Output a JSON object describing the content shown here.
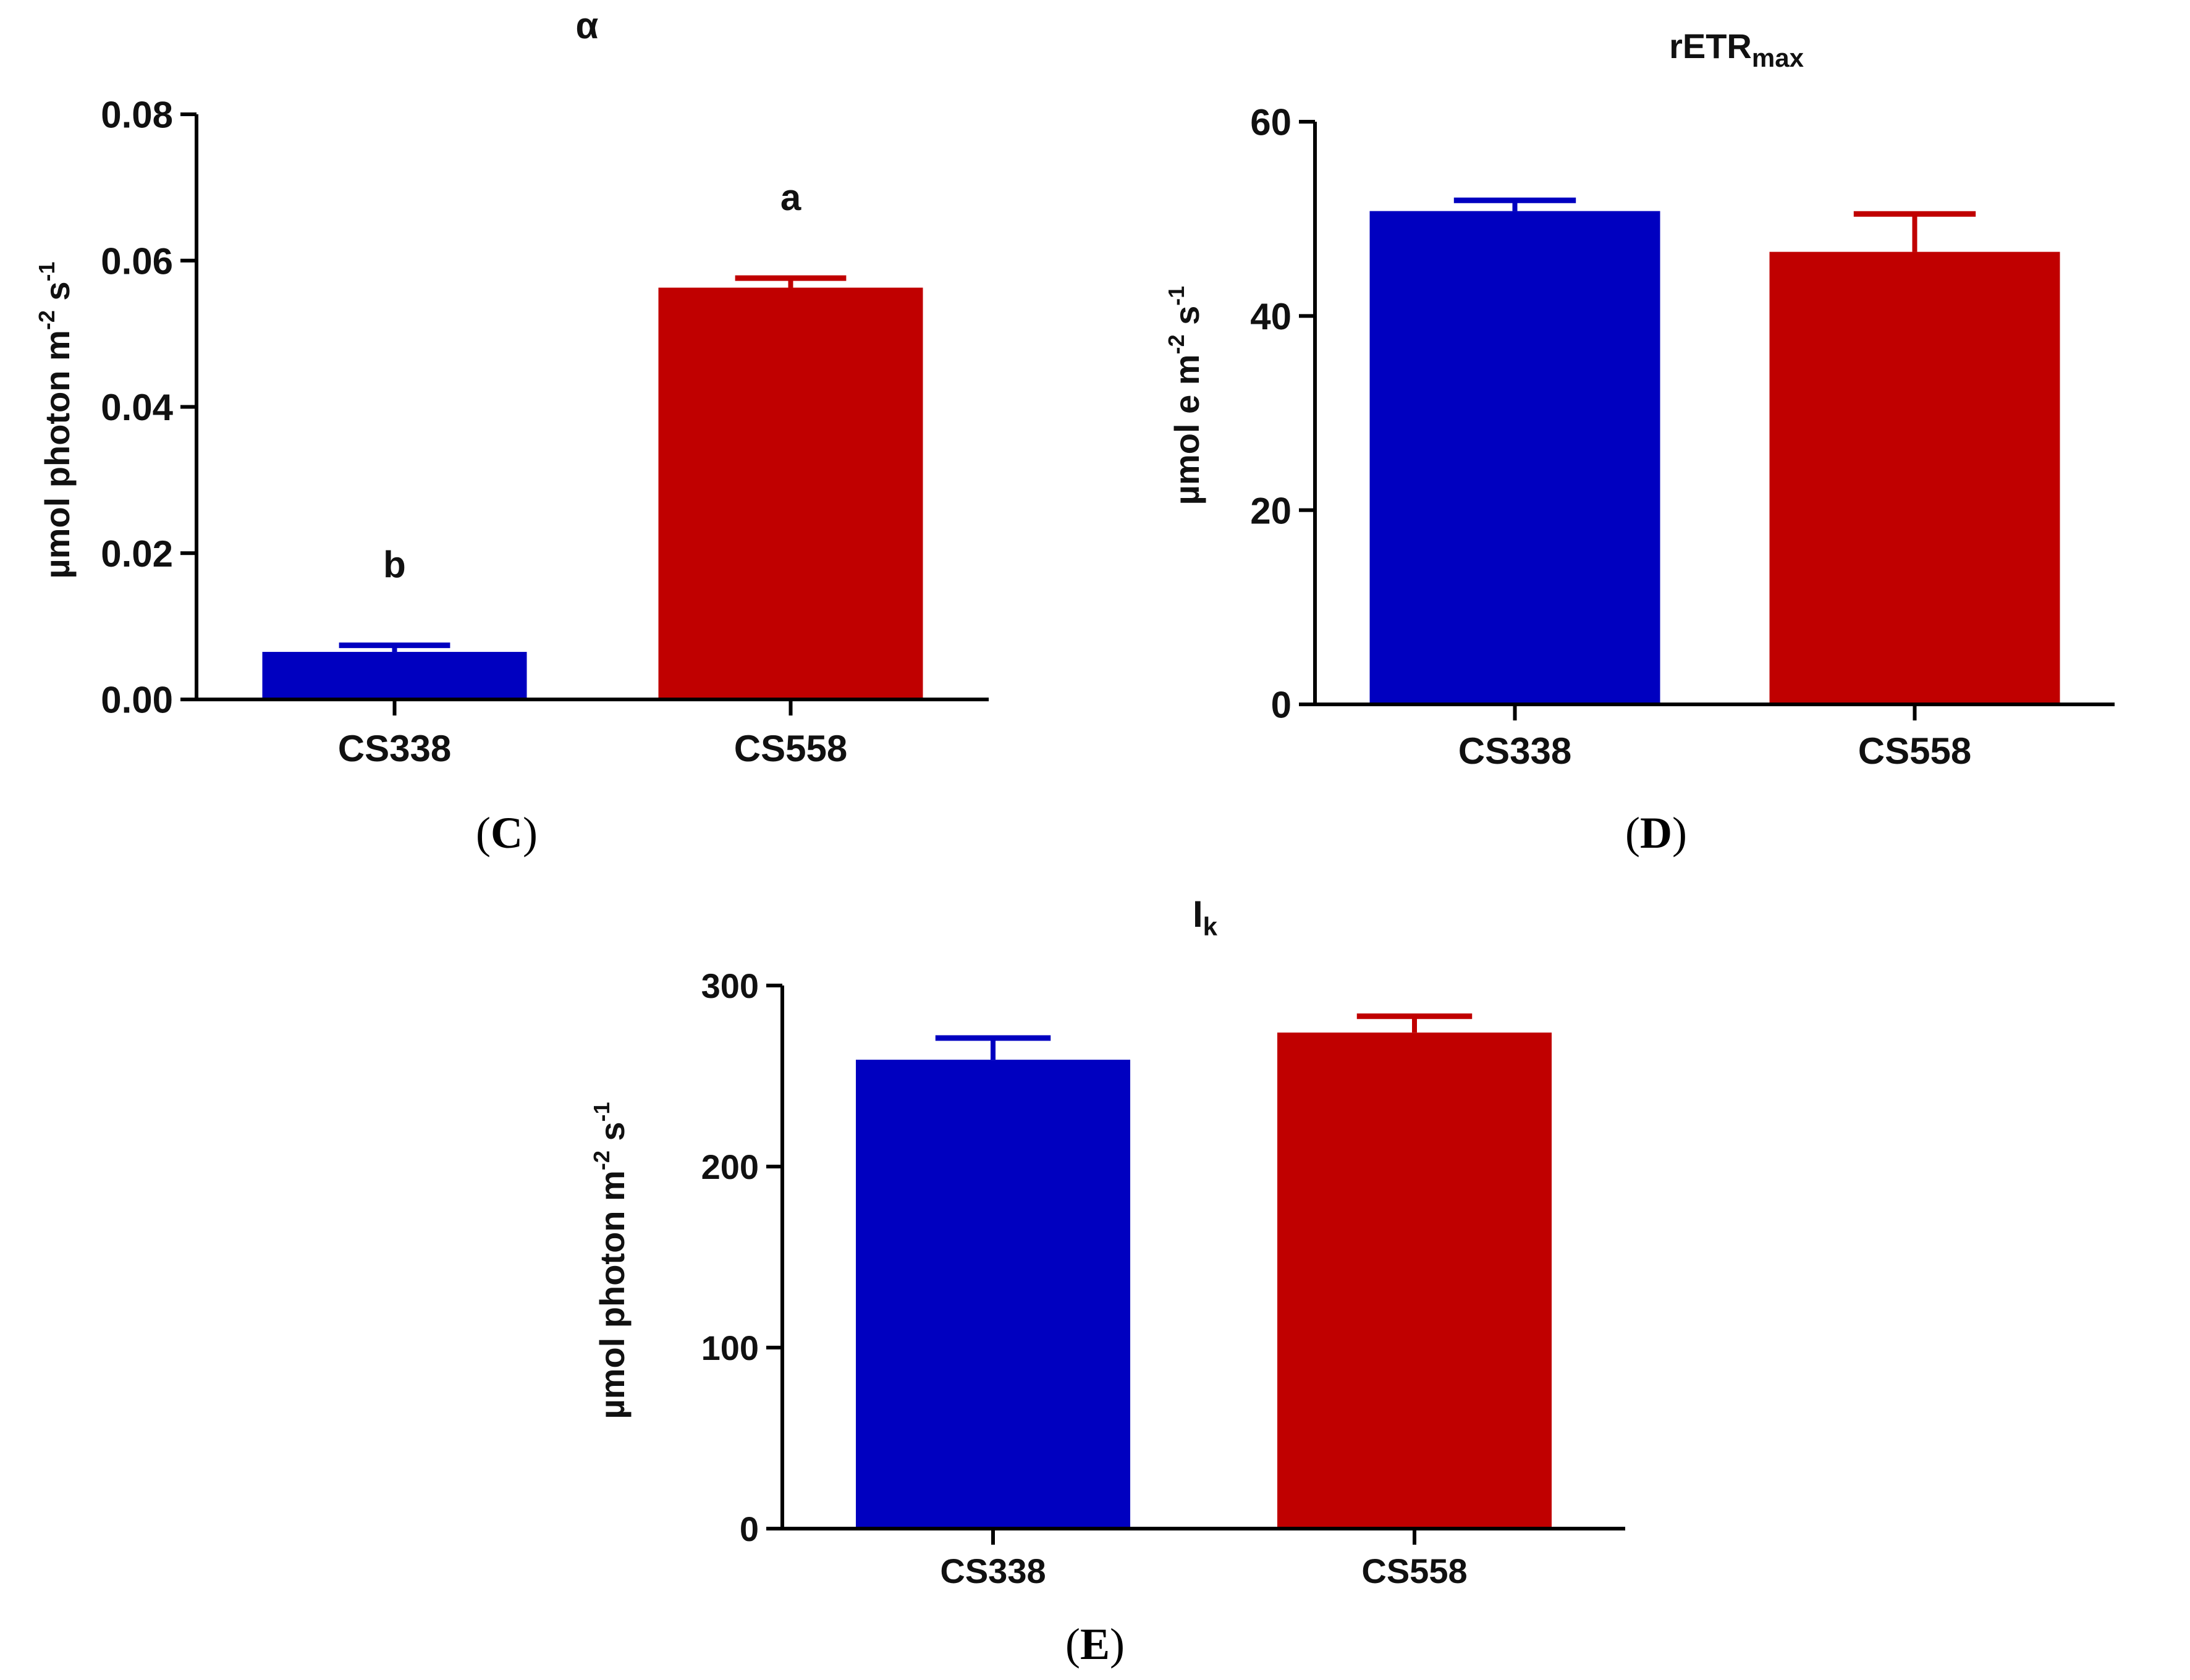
{
  "colors": {
    "blue": "#0000c0",
    "red": "#c00000",
    "axis": "#000000"
  },
  "chart_data": [
    {
      "type": "bar",
      "panel_label": "C",
      "title": "α",
      "title_sub": "",
      "ylabel": {
        "main": "µmol photon m",
        "sup1": "-2",
        "mid": " s",
        "sup2": "-1"
      },
      "categories": [
        "CS338",
        "CS558"
      ],
      "values": [
        0.0065,
        0.0563
      ],
      "errors": [
        0.0009,
        0.0013
      ],
      "significance": [
        "b",
        "a"
      ],
      "ylim": [
        0,
        0.08
      ],
      "yticks": [
        0,
        0.02,
        0.04,
        0.06,
        0.08
      ],
      "ytick_labels": [
        "0.00",
        "0.02",
        "0.04",
        "0.06",
        "0.08"
      ],
      "bar_colors": [
        "#0000c0",
        "#c00000"
      ]
    },
    {
      "type": "bar",
      "panel_label": "D",
      "title": "rETR",
      "title_sub": "max",
      "ylabel": {
        "main": "µmol e m",
        "sup1": "-2",
        "mid": " s",
        "sup2": "-1"
      },
      "categories": [
        "CS338",
        "CS558"
      ],
      "values": [
        50.8,
        46.6
      ],
      "errors": [
        1.1,
        3.9
      ],
      "significance": [
        "",
        ""
      ],
      "ylim": [
        0,
        60
      ],
      "yticks": [
        0,
        20,
        40,
        60
      ],
      "ytick_labels": [
        "0",
        "20",
        "40",
        "60"
      ],
      "bar_colors": [
        "#0000c0",
        "#c00000"
      ]
    },
    {
      "type": "bar",
      "panel_label": "E",
      "title": "I",
      "title_sub": "k",
      "ylabel": {
        "main": "µmol photon m",
        "sup1": "-2",
        "mid": " s",
        "sup2": "-1"
      },
      "categories": [
        "CS338",
        "CS558"
      ],
      "values": [
        259,
        274
      ],
      "errors": [
        12,
        9
      ],
      "significance": [
        "",
        ""
      ],
      "ylim": [
        0,
        300
      ],
      "yticks": [
        0,
        100,
        200,
        300
      ],
      "ytick_labels": [
        "0",
        "100",
        "200",
        "300"
      ],
      "bar_colors": [
        "#0000c0",
        "#c00000"
      ]
    }
  ]
}
